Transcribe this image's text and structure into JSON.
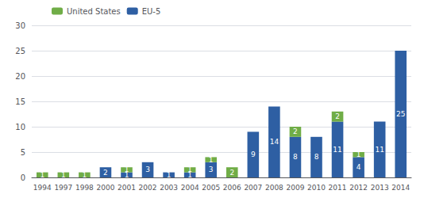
{
  "chart_data": {
    "type": "bar",
    "categories": [
      "1994",
      "1997",
      "1998",
      "2000",
      "2001",
      "2002",
      "2003",
      "2004",
      "2005",
      "2006",
      "2007",
      "2008",
      "2009",
      "2010",
      "2011",
      "2012",
      "2013",
      "2014"
    ],
    "series": [
      {
        "name": "EU-5",
        "color": "#2e5fa3",
        "values": [
          0,
          0,
          0,
          2,
          1,
          3,
          1,
          1,
          3,
          0,
          9,
          14,
          8,
          8,
          11,
          4,
          11,
          25
        ]
      },
      {
        "name": "United States",
        "color": "#70ad47",
        "values": [
          1,
          1,
          1,
          0,
          1,
          0,
          0,
          1,
          1,
          2,
          0,
          0,
          2,
          0,
          2,
          1,
          0,
          0
        ]
      }
    ],
    "stacked": true,
    "data_labels": true,
    "ylim": [
      0,
      30
    ],
    "yticks": [
      0,
      5,
      10,
      15,
      20,
      25,
      30
    ],
    "grid": true,
    "legend": "upper left"
  }
}
